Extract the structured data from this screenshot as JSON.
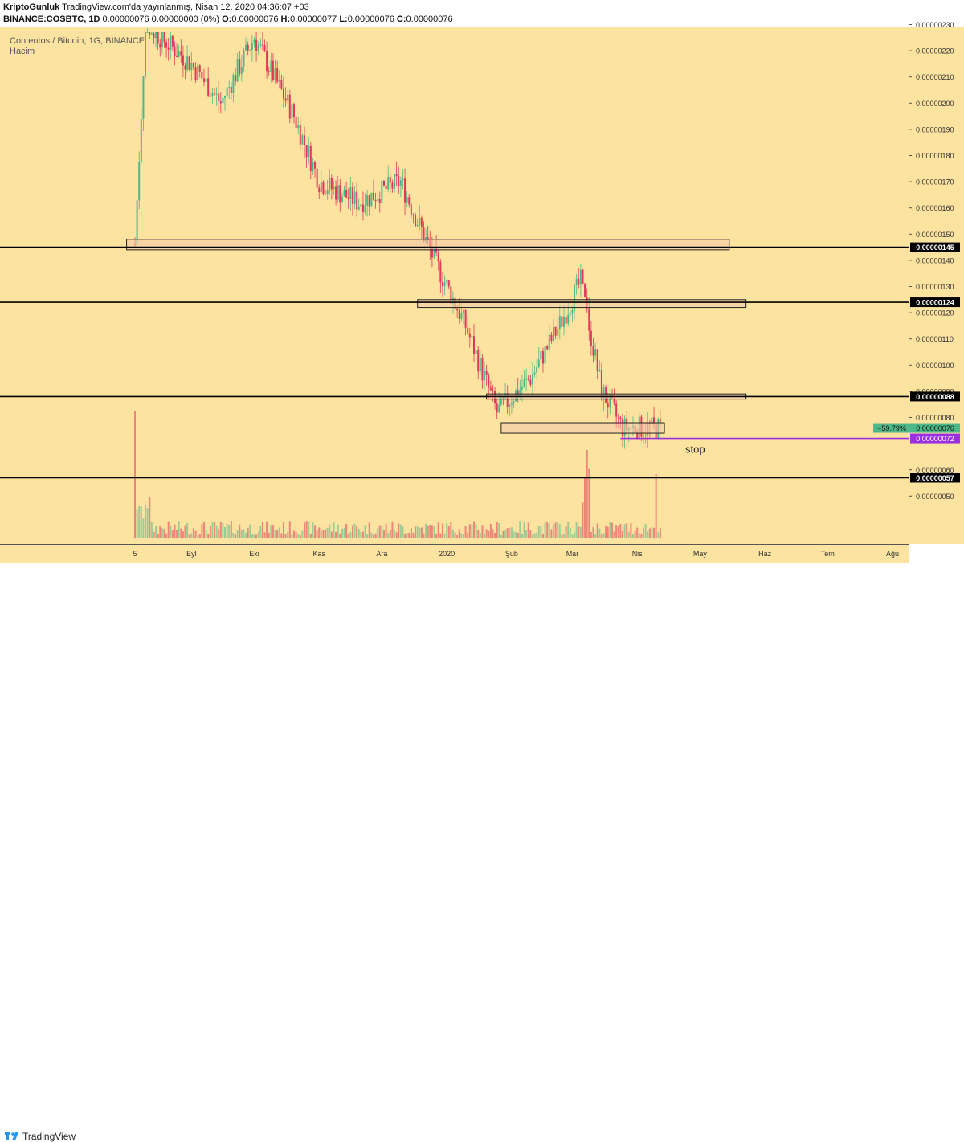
{
  "header": {
    "publisher": "KriptoGunluk",
    "published_text": "TradingView.com'da yayınlanmış, Nisan 12, 2020 04:36:07 +03",
    "symbol": "BINANCE:COSBTC, 1D",
    "quote": "0.00000076 0.00000000 (0%)",
    "o_label": "O:",
    "o_value": "0.00000076",
    "h_label": "H:",
    "h_value": "0.00000077",
    "l_label": "L:",
    "l_value": "0.00000076",
    "c_label": "C:",
    "c_value": "0.00000076"
  },
  "legend": {
    "title": "Contentos / Bitcoin, 1G, BINANCE",
    "volume_label": "Hacim"
  },
  "footer": {
    "brand": "TradingView"
  },
  "colors": {
    "background": "#fce3a0",
    "up": "#4db888",
    "down": "#e0385a",
    "zone_fill": "#f2c9a8",
    "stop_line": "#9b30e0"
  },
  "chart_data": {
    "type": "candlestick",
    "y_ticks": [
      "0.00000230",
      "0.00000220",
      "0.00000210",
      "0.00000200",
      "0.00000190",
      "0.00000180",
      "0.00000170",
      "0.00000160",
      "0.00000150",
      "0.00000140",
      "0.00000130",
      "0.00000120",
      "0.00000110",
      "0.00000100",
      "0.00000090",
      "0.00000080",
      "0.00000060",
      "0.00000050"
    ],
    "x_ticks": [
      "5",
      "Eyl",
      "Eki",
      "Kas",
      "Ara",
      "2020",
      "Şub",
      "Mar",
      "Nis",
      "May",
      "Haz",
      "Tem",
      "Ağu"
    ],
    "horizontal_levels": [
      {
        "value": "0.00000145"
      },
      {
        "value": "0.00000124"
      },
      {
        "value": "0.00000088"
      },
      {
        "value": "0.00000057"
      }
    ],
    "last_price": {
      "value": "0.00000076",
      "change": "−59.79%"
    },
    "stop_level": {
      "value": "0.00000072",
      "label": "stop"
    },
    "zones": [
      {
        "from": 1.44,
        "to": 1.48,
        "start": "2019-08-01",
        "end": "2020-05-15"
      },
      {
        "from": 1.22,
        "to": 1.25,
        "start": "2019-12-18",
        "end": "2020-05-23"
      },
      {
        "from": 0.87,
        "to": 0.89,
        "start": "2020-01-20",
        "end": "2020-05-23"
      },
      {
        "from": 0.74,
        "to": 0.78,
        "start": "2020-01-27",
        "end": "2020-04-14"
      }
    ],
    "series_close_approx": [
      {
        "date": "2019-08-05",
        "value": 1.46
      },
      {
        "date": "2019-08-10",
        "value": 2.3
      },
      {
        "date": "2019-09-01",
        "value": 2.15
      },
      {
        "date": "2019-09-15",
        "value": 2.0
      },
      {
        "date": "2019-10-01",
        "value": 2.25
      },
      {
        "date": "2019-10-20",
        "value": 1.95
      },
      {
        "date": "2019-11-01",
        "value": 1.7
      },
      {
        "date": "2019-11-20",
        "value": 1.62
      },
      {
        "date": "2019-12-10",
        "value": 1.7
      },
      {
        "date": "2019-12-25",
        "value": 1.42
      },
      {
        "date": "2020-01-10",
        "value": 1.15
      },
      {
        "date": "2020-01-25",
        "value": 0.82
      },
      {
        "date": "2020-02-10",
        "value": 0.95
      },
      {
        "date": "2020-02-25",
        "value": 1.17
      },
      {
        "date": "2020-03-05",
        "value": 1.32
      },
      {
        "date": "2020-03-15",
        "value": 0.9
      },
      {
        "date": "2020-03-25",
        "value": 0.76
      },
      {
        "date": "2020-04-12",
        "value": 0.76
      }
    ]
  }
}
